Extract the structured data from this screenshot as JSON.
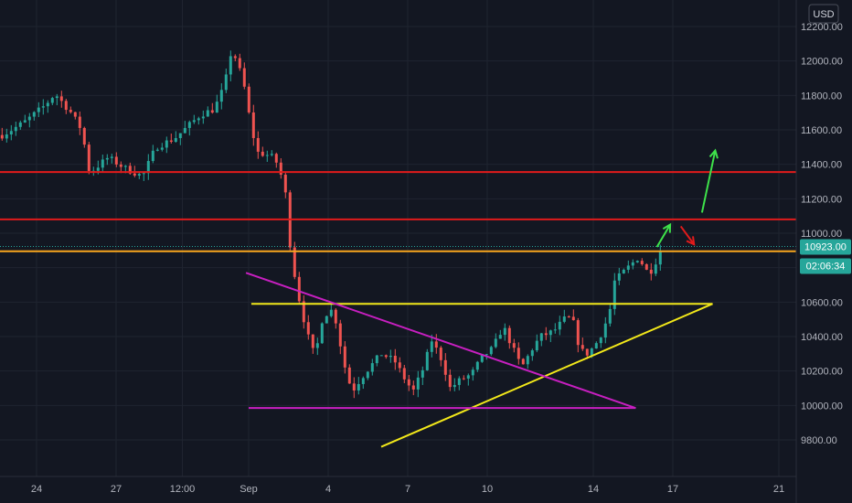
{
  "currency": "USD",
  "price_label": "10923.00",
  "timer_label": "02:06:34",
  "colors": {
    "background": "#131722",
    "up": "#26a69a",
    "down": "#ef5350",
    "grid": "#1f2430",
    "axis_text": "#b2b5be",
    "price_box": "#26a69a",
    "timer_box": "#26a69a",
    "resistance_red": "#e01b1b",
    "orange_level": "#f7a51d",
    "yellow_line": "#f2e81a",
    "magenta_line": "#c71fc0",
    "arrow_green": "#3ee24a",
    "arrow_red": "#e01b1b"
  },
  "chart_data": {
    "type": "candlestick",
    "x_ticks": [
      {
        "label": "24",
        "day": 24
      },
      {
        "label": "27",
        "day": 27
      },
      {
        "label": "12:00",
        "day": 29.5
      },
      {
        "label": "Sep",
        "day": 32
      },
      {
        "label": "4",
        "day": 35
      },
      {
        "label": "7",
        "day": 38
      },
      {
        "label": "10",
        "day": 41
      },
      {
        "label": "14",
        "day": 45
      },
      {
        "label": "17",
        "day": 48
      },
      {
        "label": "21",
        "day": 52
      }
    ],
    "y_ticks": [
      "12200.00",
      "12000.00",
      "11800.00",
      "11600.00",
      "11400.00",
      "11200.00",
      "11000.00",
      "10800.00",
      "10600.00",
      "10400.00",
      "10200.00",
      "10000.00",
      "9800.00"
    ],
    "ylim": [
      9700,
      12270
    ],
    "anchor_points": [
      [
        22.7,
        11570
      ],
      [
        23.5,
        11640
      ],
      [
        24.3,
        11740
      ],
      [
        24.7,
        11810
      ],
      [
        25.3,
        11700
      ],
      [
        25.7,
        11600
      ],
      [
        26.0,
        11350
      ],
      [
        26.7,
        11440
      ],
      [
        27.3,
        11380
      ],
      [
        28.0,
        11330
      ],
      [
        28.5,
        11500
      ],
      [
        29.2,
        11550
      ],
      [
        29.7,
        11620
      ],
      [
        30.2,
        11690
      ],
      [
        30.7,
        11720
      ],
      [
        31.1,
        11860
      ],
      [
        31.3,
        12040
      ],
      [
        31.5,
        12020
      ],
      [
        31.8,
        11880
      ],
      [
        32.0,
        11700
      ],
      [
        32.3,
        11470
      ],
      [
        32.8,
        11450
      ],
      [
        33.0,
        11430
      ],
      [
        33.2,
        11350
      ],
      [
        33.4,
        11220
      ],
      [
        33.6,
        10870
      ],
      [
        33.9,
        10620
      ],
      [
        34.2,
        10420
      ],
      [
        34.5,
        10280
      ],
      [
        34.8,
        10520
      ],
      [
        35.2,
        10560
      ],
      [
        35.6,
        10240
      ],
      [
        35.9,
        10080
      ],
      [
        36.2,
        10150
      ],
      [
        36.5,
        10210
      ],
      [
        37.0,
        10300
      ],
      [
        37.5,
        10260
      ],
      [
        37.9,
        10150
      ],
      [
        38.2,
        10080
      ],
      [
        38.6,
        10220
      ],
      [
        38.9,
        10380
      ],
      [
        39.3,
        10260
      ],
      [
        39.6,
        10100
      ],
      [
        40.0,
        10150
      ],
      [
        40.4,
        10180
      ],
      [
        40.8,
        10280
      ],
      [
        41.2,
        10330
      ],
      [
        41.6,
        10460
      ],
      [
        42.0,
        10320
      ],
      [
        42.3,
        10220
      ],
      [
        42.7,
        10330
      ],
      [
        43.0,
        10400
      ],
      [
        43.5,
        10430
      ],
      [
        43.9,
        10500
      ],
      [
        44.2,
        10510
      ],
      [
        44.5,
        10320
      ],
      [
        44.8,
        10300
      ],
      [
        45.2,
        10380
      ],
      [
        45.6,
        10530
      ],
      [
        45.8,
        10720
      ],
      [
        46.3,
        10800
      ],
      [
        46.7,
        10860
      ],
      [
        47.1,
        10760
      ],
      [
        47.4,
        10850
      ],
      [
        47.6,
        10923
      ]
    ],
    "h_lines": [
      {
        "name": "resistance-upper",
        "price": 11355,
        "color": "#e01b1b"
      },
      {
        "name": "resistance-lower",
        "price": 11080,
        "color": "#e01b1b"
      },
      {
        "name": "orange-level",
        "price": 10895,
        "color": "#f7a51d"
      },
      {
        "name": "current-price-line",
        "price": 10923,
        "color": "#26a69a"
      }
    ],
    "trend_lines": [
      {
        "name": "yellow-support-top",
        "color": "#f2e81a",
        "from": [
          32.1,
          10590
        ],
        "to": [
          49.5,
          10590
        ]
      },
      {
        "name": "yellow-rising-trendline",
        "color": "#f2e81a",
        "from": [
          37.0,
          9760
        ],
        "to": [
          49.5,
          10590
        ]
      },
      {
        "name": "magenta-descending-trendline",
        "color": "#c71fc0",
        "from": [
          31.9,
          10770
        ],
        "to": [
          46.6,
          9985
        ]
      },
      {
        "name": "magenta-base-line",
        "color": "#c71fc0",
        "from": [
          32.0,
          9985
        ],
        "to": [
          46.6,
          9985
        ]
      }
    ],
    "arrows": [
      {
        "name": "green-arrow-up-1",
        "color": "#3ee24a",
        "from": [
          47.4,
          10920
        ],
        "to": [
          47.9,
          11050
        ]
      },
      {
        "name": "red-arrow-down",
        "color": "#e01b1b",
        "from": [
          48.3,
          11040
        ],
        "to": [
          48.8,
          10935
        ]
      },
      {
        "name": "green-arrow-up-2",
        "color": "#3ee24a",
        "from": [
          49.1,
          11120
        ],
        "to": [
          49.6,
          11480
        ]
      }
    ]
  }
}
